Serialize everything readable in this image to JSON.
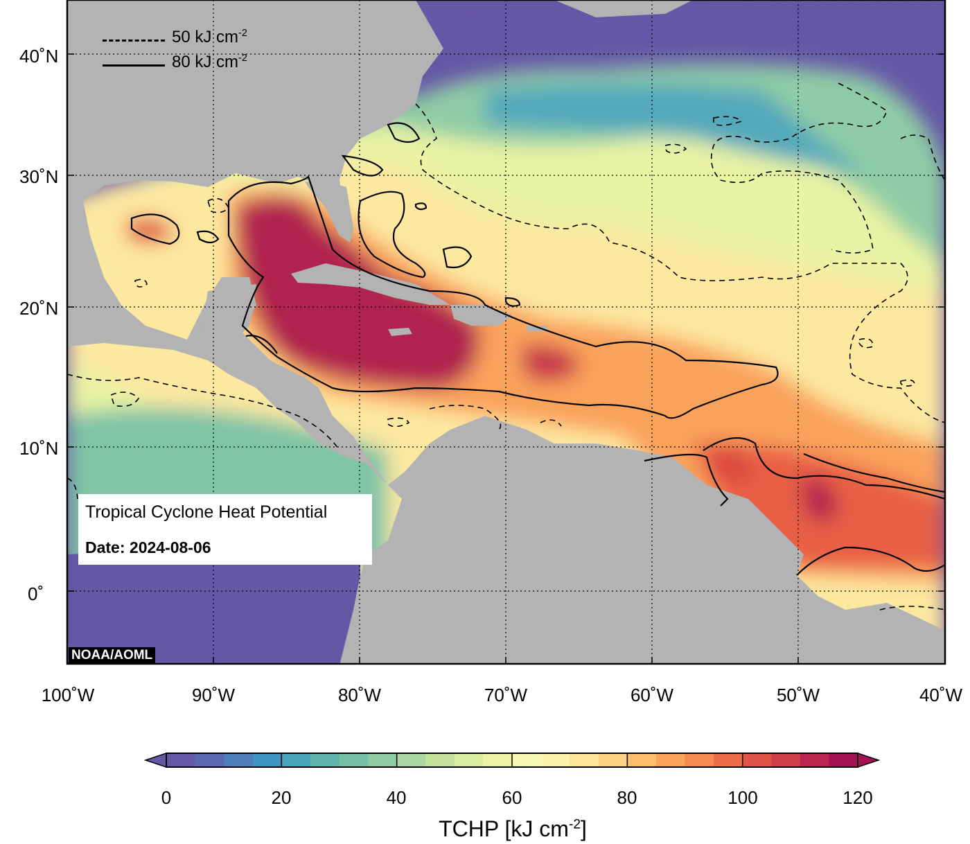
{
  "map": {
    "title": "Tropical Cyclone Heat Potential",
    "date_label": "Date: 2024-08-06",
    "credit": "NOAA/AOML",
    "lon_range": [
      -100,
      -40
    ],
    "lat_range": [
      -5,
      44
    ],
    "lat_ticks": [
      {
        "value": 40,
        "label": "40˚N"
      },
      {
        "value": 30,
        "label": "30˚N"
      },
      {
        "value": 20,
        "label": "20˚N"
      },
      {
        "value": 10,
        "label": "10˚N"
      },
      {
        "value": 0,
        "label": "0˚"
      }
    ],
    "lon_ticks": [
      {
        "value": -100,
        "label": "100˚W"
      },
      {
        "value": -90,
        "label": "90˚W"
      },
      {
        "value": -80,
        "label": "80˚W"
      },
      {
        "value": -70,
        "label": "70˚W"
      },
      {
        "value": -60,
        "label": "60˚W"
      },
      {
        "value": -50,
        "label": "50˚W"
      },
      {
        "value": -40,
        "label": "40˚W"
      }
    ],
    "grid": "dotted",
    "land_color": "#b3b3b3",
    "low_color": "#6657a6"
  },
  "contour_legend": {
    "dashed_label": "50 kJ cm",
    "dashed_exp": "-2",
    "solid_label": "80 kJ cm",
    "solid_exp": "-2",
    "dashed_value": 50,
    "solid_value": 80
  },
  "colorbar": {
    "title": "TCHP [kJ cm",
    "title_exp": "-2",
    "title_end": "]",
    "min": 0,
    "max": 120,
    "step": 5,
    "tick_labels": [
      "0",
      "20",
      "40",
      "60",
      "80",
      "100",
      "120"
    ],
    "colors": [
      "#6559a6",
      "#5b67b0",
      "#4e7fba",
      "#3e95c0",
      "#48a5bb",
      "#5fb4ae",
      "#76c0a7",
      "#90cba3",
      "#abd7a3",
      "#c4e29e",
      "#dbeda0",
      "#ecf3a6",
      "#f6f7b1",
      "#fdf3af",
      "#fde59a",
      "#fdd183",
      "#fcbb6e",
      "#f9a25c",
      "#f5894f",
      "#ec6d47",
      "#df5446",
      "#cf3d4a",
      "#bb2650",
      "#a31054"
    ]
  }
}
